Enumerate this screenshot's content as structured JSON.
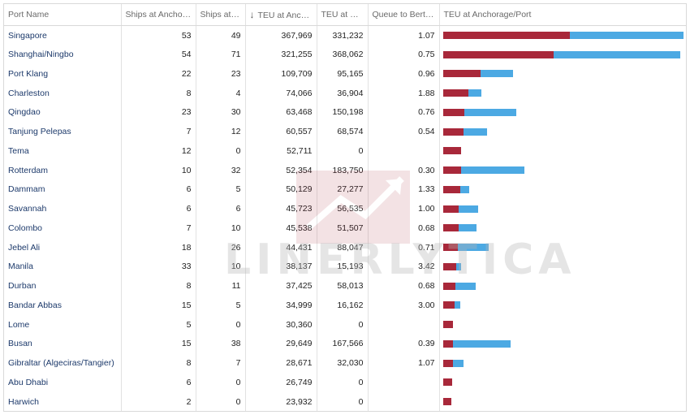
{
  "columns": {
    "port": "Port Name",
    "ships_anchorage": "Ships at Anchorage",
    "ships_port": "Ships at Port",
    "teu_anchorage": "TEU at Anchora...",
    "teu_port": "TEU at Port",
    "queue_ratio": "Queue to Berth Ratio",
    "bar": "TEU at Anchorage/Port"
  },
  "watermark": "LINERLYTICA",
  "colors": {
    "anchorage": "#a8283a",
    "port": "#4ca9e3"
  },
  "chart_data": {
    "type": "table",
    "bar_max_teu": 700000,
    "rows": [
      {
        "port": "Singapore",
        "ships_anchorage": "53",
        "ships_port": "49",
        "teu_anchorage": "367,969",
        "teu_port": "331,232",
        "queue_ratio": "1.07",
        "a": 367969,
        "p": 331232
      },
      {
        "port": "Shanghai/Ningbo",
        "ships_anchorage": "54",
        "ships_port": "71",
        "teu_anchorage": "321,255",
        "teu_port": "368,062",
        "queue_ratio": "0.75",
        "a": 321255,
        "p": 368062
      },
      {
        "port": "Port Klang",
        "ships_anchorage": "22",
        "ships_port": "23",
        "teu_anchorage": "109,709",
        "teu_port": "95,165",
        "queue_ratio": "0.96",
        "a": 109709,
        "p": 95165
      },
      {
        "port": "Charleston",
        "ships_anchorage": "8",
        "ships_port": "4",
        "teu_anchorage": "74,066",
        "teu_port": "36,904",
        "queue_ratio": "1.88",
        "a": 74066,
        "p": 36904
      },
      {
        "port": "Qingdao",
        "ships_anchorage": "23",
        "ships_port": "30",
        "teu_anchorage": "63,468",
        "teu_port": "150,198",
        "queue_ratio": "0.76",
        "a": 63468,
        "p": 150198
      },
      {
        "port": "Tanjung Pelepas",
        "ships_anchorage": "7",
        "ships_port": "12",
        "teu_anchorage": "60,557",
        "teu_port": "68,574",
        "queue_ratio": "0.54",
        "a": 60557,
        "p": 68574
      },
      {
        "port": "Tema",
        "ships_anchorage": "12",
        "ships_port": "0",
        "teu_anchorage": "52,711",
        "teu_port": "0",
        "queue_ratio": "",
        "a": 52711,
        "p": 0
      },
      {
        "port": "Rotterdam",
        "ships_anchorage": "10",
        "ships_port": "32",
        "teu_anchorage": "52,354",
        "teu_port": "183,750",
        "queue_ratio": "0.30",
        "a": 52354,
        "p": 183750
      },
      {
        "port": "Dammam",
        "ships_anchorage": "6",
        "ships_port": "5",
        "teu_anchorage": "50,129",
        "teu_port": "27,277",
        "queue_ratio": "1.33",
        "a": 50129,
        "p": 27277
      },
      {
        "port": "Savannah",
        "ships_anchorage": "6",
        "ships_port": "6",
        "teu_anchorage": "45,723",
        "teu_port": "56,535",
        "queue_ratio": "1.00",
        "a": 45723,
        "p": 56535
      },
      {
        "port": "Colombo",
        "ships_anchorage": "7",
        "ships_port": "10",
        "teu_anchorage": "45,538",
        "teu_port": "51,507",
        "queue_ratio": "0.68",
        "a": 45538,
        "p": 51507
      },
      {
        "port": "Jebel Ali",
        "ships_anchorage": "18",
        "ships_port": "26",
        "teu_anchorage": "44,431",
        "teu_port": "88,047",
        "queue_ratio": "0.71",
        "a": 44431,
        "p": 88047
      },
      {
        "port": "Manila",
        "ships_anchorage": "33",
        "ships_port": "10",
        "teu_anchorage": "38,137",
        "teu_port": "15,193",
        "queue_ratio": "3.42",
        "a": 38137,
        "p": 15193
      },
      {
        "port": "Durban",
        "ships_anchorage": "8",
        "ships_port": "11",
        "teu_anchorage": "37,425",
        "teu_port": "58,013",
        "queue_ratio": "0.68",
        "a": 37425,
        "p": 58013
      },
      {
        "port": "Bandar Abbas",
        "ships_anchorage": "15",
        "ships_port": "5",
        "teu_anchorage": "34,999",
        "teu_port": "16,162",
        "queue_ratio": "3.00",
        "a": 34999,
        "p": 16162
      },
      {
        "port": "Lome",
        "ships_anchorage": "5",
        "ships_port": "0",
        "teu_anchorage": "30,360",
        "teu_port": "0",
        "queue_ratio": "",
        "a": 30360,
        "p": 0
      },
      {
        "port": "Busan",
        "ships_anchorage": "15",
        "ships_port": "38",
        "teu_anchorage": "29,649",
        "teu_port": "167,566",
        "queue_ratio": "0.39",
        "a": 29649,
        "p": 167566
      },
      {
        "port": "Gibraltar (Algeciras/Tangier)",
        "ships_anchorage": "8",
        "ships_port": "7",
        "teu_anchorage": "28,671",
        "teu_port": "32,030",
        "queue_ratio": "1.07",
        "a": 28671,
        "p": 32030
      },
      {
        "port": "Abu Dhabi",
        "ships_anchorage": "6",
        "ships_port": "0",
        "teu_anchorage": "26,749",
        "teu_port": "0",
        "queue_ratio": "",
        "a": 26749,
        "p": 0
      },
      {
        "port": "Harwich",
        "ships_anchorage": "2",
        "ships_port": "0",
        "teu_anchorage": "23,932",
        "teu_port": "0",
        "queue_ratio": "",
        "a": 23932,
        "p": 0
      }
    ]
  }
}
